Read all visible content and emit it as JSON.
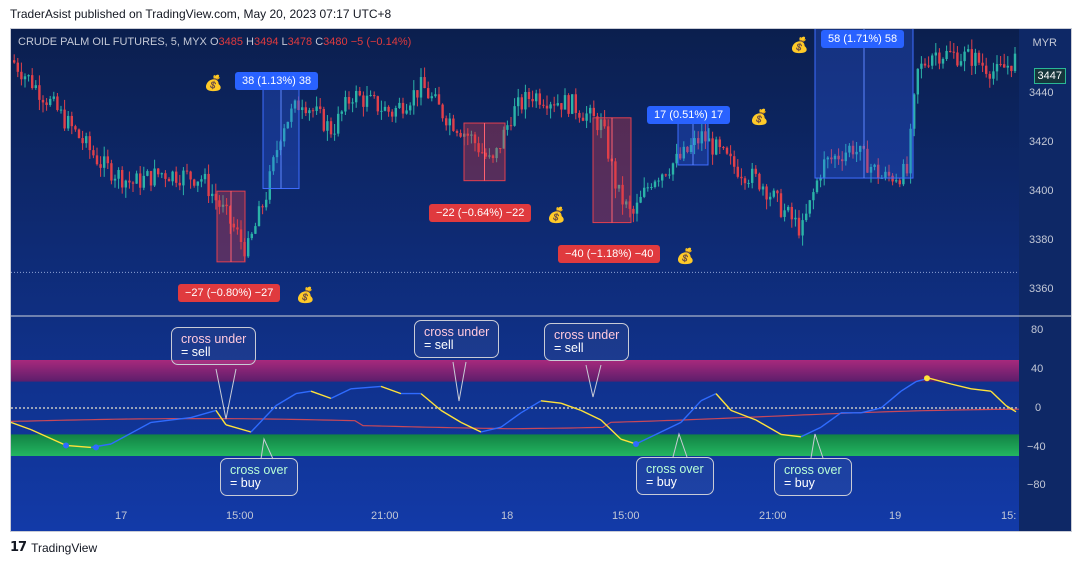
{
  "header": {
    "publisher": "TraderAsist published on TradingView.com, May 20, 2023 07:17 UTC+8"
  },
  "symbol_bar": {
    "name": "CRUDE PALM OIL FUTURES, 5, MYX",
    "o_label": "O",
    "o": "3485",
    "h_label": "H",
    "h": "3494",
    "l_label": "L",
    "l": "3478",
    "c_label": "C",
    "c": "3480",
    "change": "−5 (−0.14%)"
  },
  "currency": "MYR",
  "last_price": "3447",
  "price_axis": [
    "3440",
    "3420",
    "3400",
    "3380",
    "3360"
  ],
  "osc_axis": [
    "80",
    "40",
    "0",
    "−40",
    "−80"
  ],
  "time_axis": [
    "17",
    "15:00",
    "21:00",
    "18",
    "15:00",
    "21:00",
    "19",
    "15:"
  ],
  "trade_labels": [
    {
      "text": "38 (1.13%) 38",
      "dir": "up"
    },
    {
      "text": "−27 (−0.80%) −27",
      "dir": "down"
    },
    {
      "text": "−22 (−0.64%) −22",
      "dir": "down"
    },
    {
      "text": "−40 (−1.18%) −40",
      "dir": "down"
    },
    {
      "text": "17 (0.51%) 17",
      "dir": "up"
    },
    {
      "text": "58 (1.71%) 58",
      "dir": "up"
    }
  ],
  "money_icon": "💰",
  "callouts": [
    {
      "line1": "cross under",
      "line2": "= sell",
      "type": "sell"
    },
    {
      "line1": "cross under",
      "line2": "= sell",
      "type": "sell"
    },
    {
      "line1": "cross under",
      "line2": "= sell",
      "type": "sell"
    },
    {
      "line1": "cross over",
      "line2": "= buy",
      "type": "buy"
    },
    {
      "line1": "cross over",
      "line2": "= buy",
      "type": "buy"
    },
    {
      "line1": "cross over",
      "line2": "= buy",
      "type": "buy"
    }
  ],
  "footer": {
    "logo": "17",
    "brand": "TradingView"
  },
  "colors": {
    "bg_top": "#0b1f4e",
    "bg_bottom": "#123aa8",
    "up_candle": "#2bb3a8",
    "down_candle": "#e0404a",
    "osc_up": "#2f6bff",
    "osc_down": "#ffe23a",
    "sell_zone": "#a0206a",
    "buy_zone": "#1b8c44"
  },
  "chart_data": {
    "type": "candlestick-with-oscillator",
    "price_range": [
      3350,
      3455
    ],
    "oscillator_range": [
      -100,
      100
    ],
    "oscillator_bands": {
      "overbought": [
        55,
        100
      ],
      "oversold": [
        -100,
        -55
      ]
    },
    "trades": [
      {
        "direction": "short",
        "entry": 3395,
        "exit": 3368,
        "result": -27
      },
      {
        "direction": "long",
        "entry": 3396,
        "exit": 3434,
        "result": 38
      },
      {
        "direction": "short",
        "entry": 3421,
        "exit": 3399,
        "result": -22
      },
      {
        "direction": "short",
        "entry": 3423,
        "exit": 3383,
        "result": -40
      },
      {
        "direction": "long",
        "entry": 3405,
        "exit": 3422,
        "result": 17
      },
      {
        "direction": "long",
        "entry": 3400,
        "exit": 3458,
        "result": 58
      }
    ]
  }
}
